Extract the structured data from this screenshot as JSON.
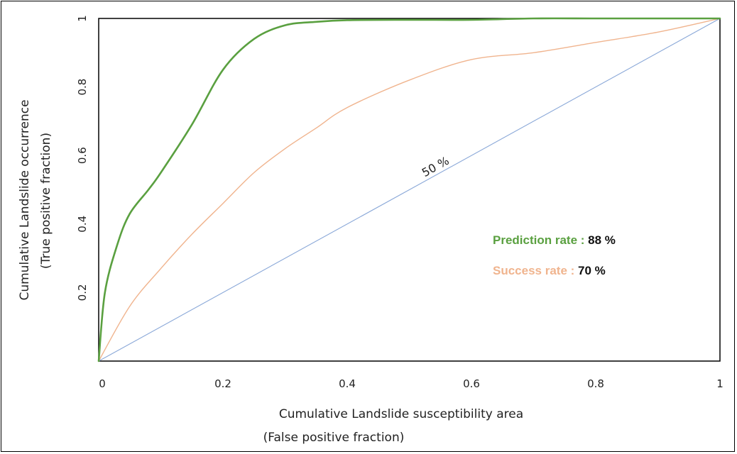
{
  "chart_data": {
    "type": "line",
    "xlabel": [
      "Cumulative Landslide susceptibility area",
      "(False positive fraction)"
    ],
    "ylabel": [
      "Cumulative Landslide occurrence",
      "(True positive fraction)"
    ],
    "xlim": [
      0,
      1
    ],
    "ylim": [
      0,
      1
    ],
    "x_ticks": [
      "0",
      "0.2",
      "0.4",
      "0.6",
      "0.8",
      "1"
    ],
    "y_ticks": [
      "0.2",
      "0.4",
      "0.6",
      "0.8",
      "1"
    ],
    "grid": false,
    "series": [
      {
        "name": "Prediction rate",
        "value_label": "88 %",
        "color": "#5aa040",
        "x": [
          0,
          0.01,
          0.03,
          0.05,
          0.08,
          0.1,
          0.15,
          0.2,
          0.25,
          0.3,
          0.35,
          0.4,
          0.5,
          0.6,
          0.7,
          0.8,
          0.9,
          1.0
        ],
        "y": [
          0,
          0.2,
          0.34,
          0.43,
          0.5,
          0.55,
          0.69,
          0.85,
          0.94,
          0.98,
          0.99,
          0.995,
          0.996,
          0.996,
          1.0,
          1.0,
          1.0,
          1.0
        ]
      },
      {
        "name": "Success rate",
        "value_label": "70 %",
        "color": "#f0b48e",
        "x": [
          0,
          0.05,
          0.1,
          0.15,
          0.2,
          0.25,
          0.3,
          0.35,
          0.4,
          0.5,
          0.6,
          0.7,
          0.8,
          0.9,
          1.0
        ],
        "y": [
          0,
          0.16,
          0.27,
          0.37,
          0.46,
          0.55,
          0.62,
          0.68,
          0.74,
          0.82,
          0.88,
          0.9,
          0.93,
          0.96,
          1.0
        ]
      },
      {
        "name": "50 %",
        "color": "#8aa8d8",
        "x": [
          0,
          1
        ],
        "y": [
          0,
          1
        ]
      }
    ]
  }
}
